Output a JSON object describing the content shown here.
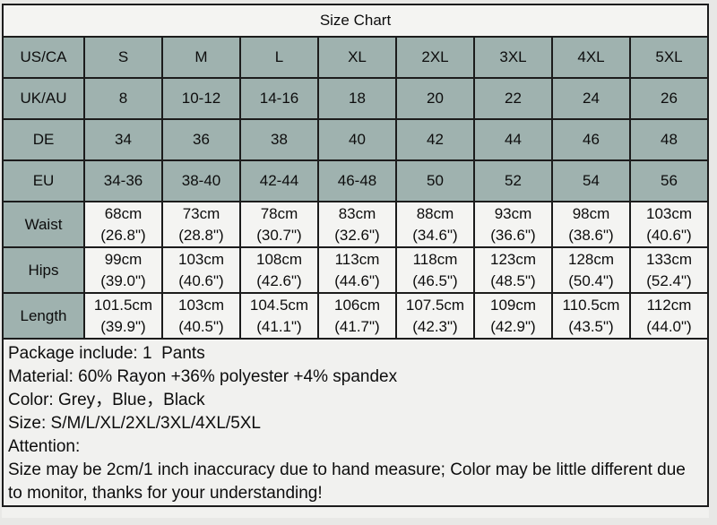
{
  "title": "Size Chart",
  "table": {
    "rows": [
      {
        "type": "size",
        "label": "US/CA",
        "values": [
          "S",
          "M",
          "L",
          "XL",
          "2XL",
          "3XL",
          "4XL",
          "5XL"
        ]
      },
      {
        "type": "size",
        "label": "UK/AU",
        "values": [
          "8",
          "10-12",
          "14-16",
          "18",
          "20",
          "22",
          "24",
          "26"
        ]
      },
      {
        "type": "size",
        "label": "DE",
        "values": [
          "34",
          "36",
          "38",
          "40",
          "42",
          "44",
          "46",
          "48"
        ]
      },
      {
        "type": "size",
        "label": "EU",
        "values": [
          "34-36",
          "38-40",
          "42-44",
          "46-48",
          "50",
          "52",
          "54",
          "56"
        ]
      },
      {
        "type": "measure",
        "label": "Waist",
        "values": [
          "68cm\n(26.8\")",
          "73cm\n(28.8\")",
          "78cm\n(30.7\")",
          "83cm\n(32.6\")",
          "88cm\n(34.6\")",
          "93cm\n(36.6\")",
          "98cm\n(38.6\")",
          "103cm\n(40.6\")"
        ]
      },
      {
        "type": "measure",
        "label": "Hips",
        "values": [
          "99cm\n(39.0\")",
          "103cm\n(40.6\")",
          "108cm\n(42.6\")",
          "113cm\n(44.6\")",
          "118cm\n(46.5\")",
          "123cm\n(48.5\")",
          "128cm\n(50.4\")",
          "133cm\n(52.4\")"
        ]
      },
      {
        "type": "measure",
        "label": "Length",
        "values": [
          "101.5cm\n(39.9\")",
          "103cm\n(40.5\")",
          "104.5cm\n(41.1\")",
          "106cm\n(41.7\")",
          "107.5cm\n(42.3\")",
          "109cm\n(42.9\")",
          "110.5cm\n(43.5\")",
          "112cm\n(44.0\")"
        ]
      }
    ]
  },
  "notes": {
    "lines": [
      "Package include: 1  Pants",
      "Material: 60% Rayon +36% polyester +4% spandex",
      "Color: Grey，Blue，Black",
      "Size: S/M/L/XL/2XL/3XL/4XL/5XL",
      "Attention:",
      "Size may be 2cm/1 inch inaccuracy due to hand measure; Color may be little different due to monitor, thanks for your understanding!"
    ]
  },
  "colors": {
    "header_cell_bg": "#9fb2af",
    "light_cell_bg": "#f4f4f2",
    "notes_bg": "#f1f1ef",
    "border": "#1c1c1c",
    "page_bg": "#e8e8e6",
    "text": "#0d0d0d"
  }
}
